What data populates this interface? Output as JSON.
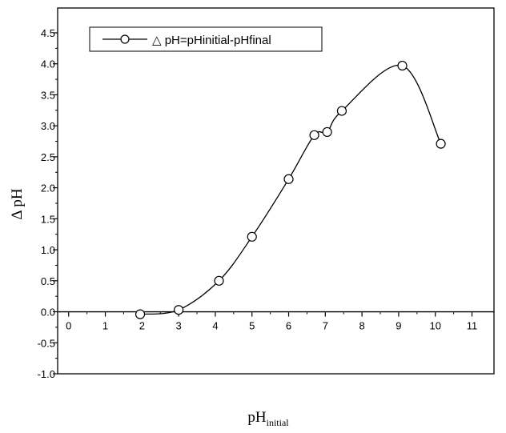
{
  "chart_data": {
    "type": "scatter",
    "title": "",
    "xlabel": "pH",
    "xlabel_subscript": "initial",
    "ylabel": "Δ pH",
    "xlim": [
      -0.3,
      11.6
    ],
    "ylim": [
      -1.0,
      4.9
    ],
    "x_ticks": [
      "0",
      "1",
      "2",
      "3",
      "4",
      "5",
      "6",
      "7",
      "8",
      "9",
      "10",
      "11"
    ],
    "y_ticks": [
      "-1.0",
      "-0.5",
      "0.0",
      "0.5",
      "1.0",
      "1.5",
      "2.0",
      "2.5",
      "3.0",
      "3.5",
      "4.0",
      "4.5"
    ],
    "grid": false,
    "legend_position": "top-left",
    "series": [
      {
        "name": "△ pH=pHinitial-pHfinal",
        "marker": "open-circle",
        "smooth_line": true,
        "x": [
          1.95,
          3.0,
          4.1,
          5.0,
          6.0,
          6.7,
          7.05,
          7.45,
          9.1,
          10.15
        ],
        "y": [
          -0.04,
          0.03,
          0.5,
          1.21,
          2.14,
          2.85,
          2.9,
          3.24,
          3.97,
          2.71
        ]
      }
    ]
  }
}
